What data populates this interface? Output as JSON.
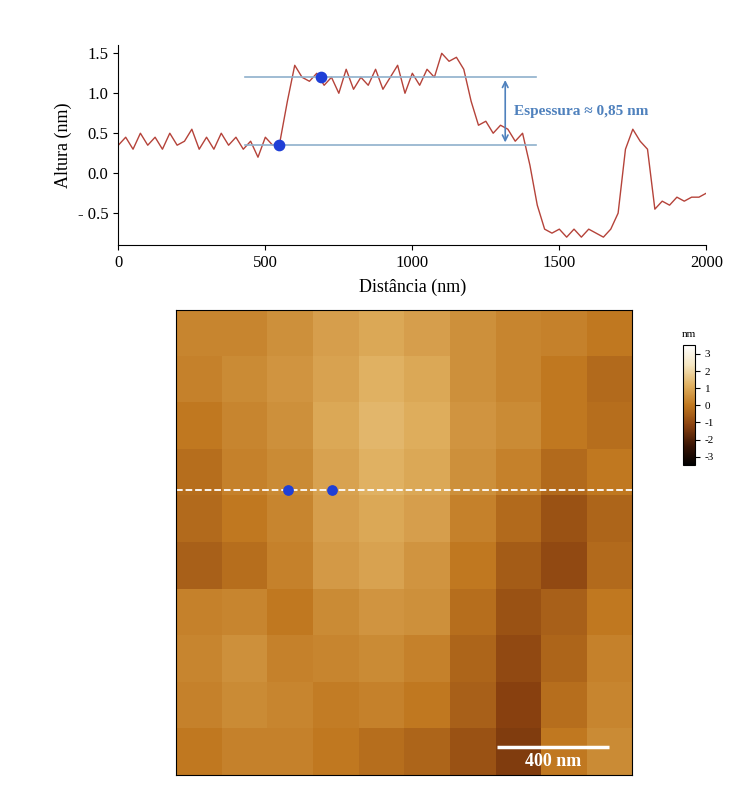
{
  "chart_data": [
    {
      "type": "line",
      "x_label": "Distância (nm)",
      "y_label": "Altura (nm)",
      "x": [
        0,
        25,
        50,
        75,
        100,
        125,
        150,
        175,
        200,
        225,
        250,
        275,
        300,
        325,
        350,
        375,
        400,
        425,
        450,
        475,
        500,
        525,
        550,
        575,
        600,
        625,
        650,
        675,
        700,
        725,
        750,
        775,
        800,
        825,
        850,
        875,
        900,
        925,
        950,
        975,
        1000,
        1025,
        1050,
        1075,
        1100,
        1125,
        1150,
        1175,
        1200,
        1225,
        1250,
        1275,
        1300,
        1325,
        1350,
        1375,
        1400,
        1425,
        1450,
        1475,
        1500,
        1525,
        1550,
        1575,
        1600,
        1625,
        1650,
        1675,
        1700,
        1725,
        1750,
        1775,
        1800,
        1825,
        1850,
        1875,
        1900,
        1925,
        1950,
        1975,
        2000
      ],
      "values": [
        0.35,
        0.45,
        0.3,
        0.5,
        0.35,
        0.45,
        0.3,
        0.5,
        0.35,
        0.4,
        0.55,
        0.3,
        0.45,
        0.3,
        0.5,
        0.35,
        0.45,
        0.3,
        0.4,
        0.2,
        0.45,
        0.35,
        0.4,
        0.9,
        1.35,
        1.2,
        1.15,
        1.25,
        1.1,
        1.2,
        1.0,
        1.3,
        1.05,
        1.2,
        1.1,
        1.3,
        1.05,
        1.2,
        1.35,
        1.0,
        1.25,
        1.1,
        1.3,
        1.2,
        1.5,
        1.4,
        1.45,
        1.3,
        0.9,
        0.6,
        0.65,
        0.5,
        0.6,
        0.55,
        0.4,
        0.5,
        0.1,
        -0.4,
        -0.7,
        -0.75,
        -0.7,
        -0.8,
        -0.7,
        -0.8,
        -0.7,
        -0.75,
        -0.8,
        -0.7,
        -0.5,
        0.3,
        0.55,
        0.4,
        0.3,
        -0.45,
        -0.35,
        -0.4,
        -0.3,
        -0.35,
        -0.3,
        -0.3,
        -0.25
      ],
      "color": "#b5433a",
      "xlim": [
        0,
        2000
      ],
      "ylim": [
        -0.9,
        1.6
      ],
      "xticks": [
        0,
        500,
        1000,
        1500,
        2000
      ],
      "yticks": [
        {
          "value": -0.5,
          "label": "- 0.5"
        },
        {
          "value": 0.0,
          "label": "0.0"
        },
        0.5,
        1.0,
        1.5
      ],
      "reference_lines": [
        0.35,
        1.2
      ],
      "reference_x_range": [
        432,
        1420
      ],
      "reference_color": "#8fb0cc",
      "highlight_points": {
        "x": [
          545,
          690
        ],
        "y": [
          0.35,
          1.2
        ],
        "color": "#1f3fd6"
      },
      "annotation": {
        "text": "Espessura ≈ 0,85 nm",
        "arrow_x": 1316,
        "color": "#4f81bd"
      }
    },
    {
      "type": "heatmap",
      "tick_labels": false,
      "xlim": [
        0,
        1630
      ],
      "ylim": [
        0,
        1750
      ],
      "cells": [
        [
          0.3,
          0.3,
          0.5,
          0.8,
          1.0,
          0.8,
          0.5,
          0.3,
          0.2,
          0.0
        ],
        [
          0.2,
          0.4,
          0.6,
          0.9,
          1.2,
          1.0,
          0.5,
          0.3,
          0.0,
          -0.3
        ],
        [
          0.0,
          0.3,
          0.5,
          1.0,
          1.3,
          1.1,
          0.6,
          0.4,
          0.0,
          -0.2
        ],
        [
          -0.2,
          0.2,
          0.4,
          0.9,
          1.2,
          1.0,
          0.5,
          0.2,
          -0.3,
          0.0
        ],
        [
          -0.3,
          0.0,
          0.3,
          0.8,
          1.0,
          0.8,
          0.2,
          -0.3,
          -0.8,
          -0.4
        ],
        [
          -0.5,
          -0.2,
          0.2,
          0.7,
          0.9,
          0.6,
          0.0,
          -0.6,
          -1.0,
          -0.3
        ],
        [
          0.2,
          0.3,
          0.0,
          0.4,
          0.6,
          0.5,
          -0.2,
          -0.8,
          -0.5,
          0.0
        ],
        [
          0.3,
          0.5,
          0.2,
          0.3,
          0.4,
          0.2,
          -0.4,
          -1.0,
          -0.4,
          0.2
        ],
        [
          0.2,
          0.4,
          0.3,
          0.1,
          0.2,
          0.0,
          -0.5,
          -1.2,
          -0.2,
          0.3
        ],
        [
          0.0,
          0.2,
          0.2,
          0.0,
          -0.2,
          -0.4,
          -0.8,
          -1.3,
          0.0,
          0.4
        ]
      ],
      "colorbar_lim": [
        -3.5,
        3.5
      ],
      "colorbar_ticks": [
        -3,
        -2,
        -1,
        0,
        1,
        2,
        3
      ],
      "colorbar_label": "nm",
      "scale_bar": {
        "length": 400,
        "label": "400 nm"
      },
      "profile_line_y": 1072,
      "highlight_points_x": [
        400,
        557
      ],
      "highlight_color": "#1f3fd6"
    }
  ]
}
